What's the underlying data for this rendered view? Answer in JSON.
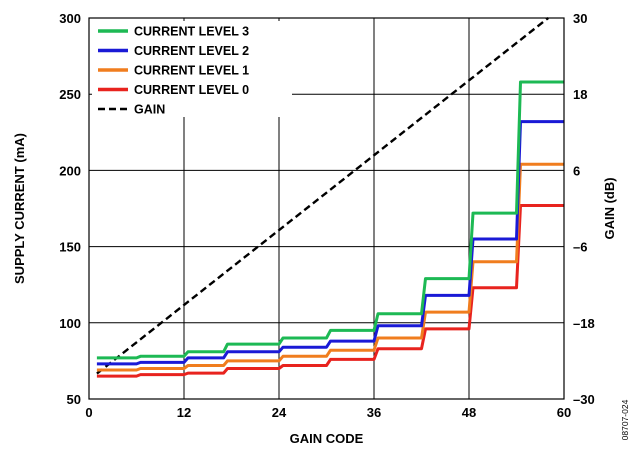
{
  "chart_data": {
    "type": "line",
    "xlabel": "GAIN CODE",
    "ylabel": "SUPPLY CURRENT (mA)",
    "y2label": "GAIN (dB)",
    "xlim": [
      0,
      60
    ],
    "ylim": [
      50,
      300
    ],
    "y2lim": [
      -30,
      30
    ],
    "x_ticks": [
      0,
      12,
      24,
      36,
      48,
      60
    ],
    "y_ticks": [
      50,
      100,
      150,
      200,
      250,
      300
    ],
    "y2_ticks": [
      -30,
      -18,
      -6,
      6,
      18,
      30
    ],
    "y2_tick_labels": [
      "–30",
      "–18",
      "–6",
      "6",
      "18",
      "30"
    ],
    "grid": true,
    "legend_position": "top-left",
    "figure_id": "08707-024",
    "series": [
      {
        "name": "CURRENT LEVEL 3",
        "color": "#1db954",
        "axis": "left",
        "style": "solid",
        "x": [
          1,
          6,
          6.5,
          12,
          12.5,
          17,
          17.5,
          24,
          24.5,
          30,
          30.5,
          36,
          36.5,
          42,
          42.5,
          48,
          48.5,
          54,
          54.5,
          60
        ],
        "y": [
          77,
          77,
          78,
          78,
          81,
          81,
          86,
          86,
          90,
          90,
          95,
          95,
          106,
          106,
          129,
          129,
          172,
          172,
          258,
          258
        ]
      },
      {
        "name": "CURRENT LEVEL 2",
        "color": "#1a1ad6",
        "axis": "left",
        "style": "solid",
        "x": [
          1,
          6,
          6.5,
          12,
          12.5,
          17,
          17.5,
          24,
          24.5,
          30,
          30.5,
          36,
          36.5,
          42,
          42.5,
          48,
          48.5,
          54,
          54.5,
          60
        ],
        "y": [
          73,
          73,
          74,
          74,
          77,
          77,
          81,
          81,
          84,
          84,
          88,
          88,
          98,
          98,
          118,
          118,
          155,
          155,
          232,
          232
        ]
      },
      {
        "name": "CURRENT LEVEL 1",
        "color": "#f07d1e",
        "axis": "left",
        "style": "solid",
        "x": [
          1,
          6,
          6.5,
          12,
          12.5,
          17,
          17.5,
          24,
          24.5,
          30,
          30.5,
          36,
          36.5,
          42,
          42.5,
          48,
          48.5,
          54,
          54.5,
          60
        ],
        "y": [
          69,
          69,
          70,
          70,
          72,
          72,
          75,
          75,
          78,
          78,
          82,
          82,
          90,
          90,
          107,
          107,
          140,
          140,
          204,
          204
        ]
      },
      {
        "name": "CURRENT LEVEL 0",
        "color": "#e8231e",
        "axis": "left",
        "style": "solid",
        "x": [
          1,
          6,
          6.5,
          12,
          12.5,
          17,
          17.5,
          24,
          24.5,
          30,
          30.5,
          36,
          36.5,
          42,
          42.5,
          48,
          48.5,
          54,
          54.5,
          60
        ],
        "y": [
          65,
          65,
          66,
          66,
          67,
          67,
          70,
          70,
          72,
          72,
          76,
          76,
          83,
          83,
          96,
          96,
          123,
          123,
          177,
          177
        ]
      },
      {
        "name": "GAIN",
        "color": "#000000",
        "axis": "right",
        "style": "dashed",
        "x": [
          1,
          58
        ],
        "y": [
          -26,
          30
        ]
      }
    ]
  }
}
